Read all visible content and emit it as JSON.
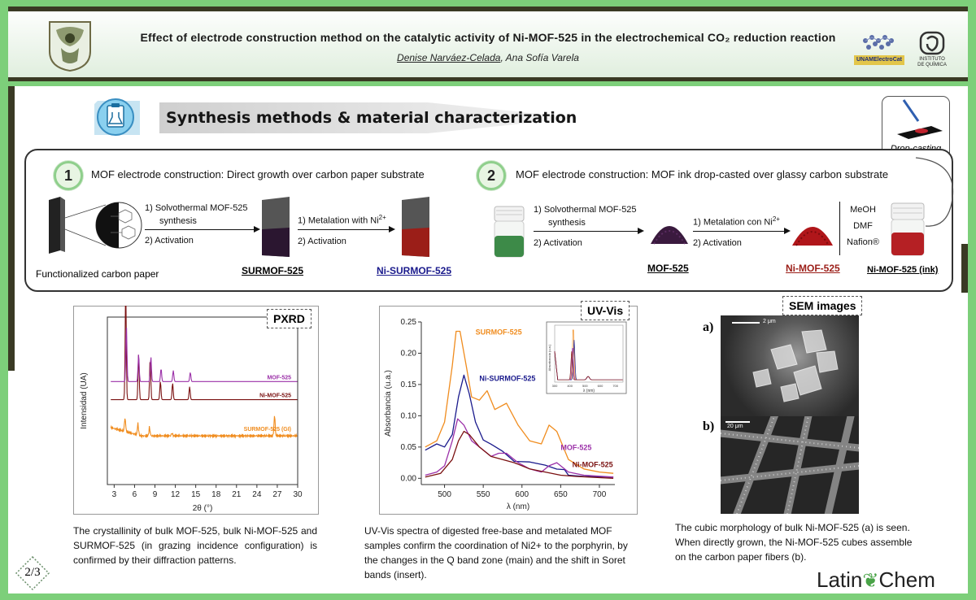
{
  "header": {
    "title": "Effect of electrode construction method on the catalytic activity of Ni-MOF-525 in the electrochemical CO₂ reduction reaction",
    "author_main": "Denise Narváez-Celada",
    "author_rest": ", Ana Sofía Varela",
    "logo_unam_text": "UNAMElectroCat",
    "logo_iq_text_1": "INSTITUTO",
    "logo_iq_text_2": "DE QUÍMICA"
  },
  "section": {
    "title": "Synthesis methods & material characterization"
  },
  "dropcast": {
    "label": "Drop-casting"
  },
  "method1": {
    "number": "1",
    "heading": "MOF electrode construction: Direct growth over carbon paper substrate",
    "step1_a": "1)  Solvothermal MOF-525",
    "step1_b": "synthesis",
    "step1_c": "2)  Activation",
    "step2_a": "1)  Metalation with Ni",
    "step2_sup": "2+",
    "step2_b": "2)  Activation",
    "label_paper": "Functionalized carbon paper",
    "label_sur": "SURMOF-525",
    "label_nisur": "Ni-SURMOF-525"
  },
  "method2": {
    "number": "2",
    "heading": "MOF electrode construction: MOF ink drop-casted over glassy carbon substrate",
    "step1_a": "1)  Solvothermal MOF-525",
    "step1_b": "synthesis",
    "step1_c": "2)  Activation",
    "step2_a": "1)  Metalation con Ni",
    "step2_sup": "2+",
    "step2_b": "2)  Activation",
    "ink_1": "MeOH",
    "ink_2": "DMF",
    "ink_3": "Nafion®",
    "label_mof": "MOF-525",
    "label_nimof": "Ni-MOF-525",
    "label_ink": "Ni-MOF-525 (ink)"
  },
  "pxrd": {
    "label": "PXRD",
    "caption": "The crystallinity of bulk MOF-525, bulk Ni-MOF-525 and SURMOF-525 (in grazing incidence configuration) is confirmed by their diffraction patterns."
  },
  "uvvis": {
    "label": "UV-Vis",
    "caption": "UV-Vis spectra of digested free-base and metalated MOF samples confirm the coordination of Ni2+ to the porphyrin, by the changes in the Q band zone (main) and the shift in Soret bands (insert)."
  },
  "sem": {
    "label": "SEM images",
    "a_label": "a)",
    "b_label": "b)",
    "scale_a": "2 μm",
    "scale_b": "20 μm",
    "caption": "The cubic morphology of  bulk Ni-MOF-525 (a) is seen. When directly grown, the Ni-MOF-525 cubes assemble on the carbon paper fibers (b)."
  },
  "footer": {
    "page": "2/3",
    "brand_a": "Latin",
    "brand_b": "Chem"
  },
  "colors": {
    "accent_green": "#7dcf7a",
    "dark_bar": "#3a3a24",
    "surmof": "#f08c1e",
    "nisurmof": "#1a1a8c",
    "mof": "#9b30a8",
    "nimof": "#7a1010"
  },
  "chart_data": [
    {
      "type": "line",
      "title": "",
      "xlabel": "2θ (°)",
      "ylabel": "Intensidad (UA)",
      "xlim": [
        2,
        30
      ],
      "x_ticks": [
        "3",
        "6",
        "9",
        "12",
        "15",
        "18",
        "21",
        "24",
        "27",
        "30"
      ],
      "series": [
        {
          "name": "SURMOF-525 (GI)",
          "color": "#f08c1e",
          "baseline": 0.72,
          "peaks": [
            [
              4.6,
              0.15
            ],
            [
              6.5,
              0.12
            ],
            [
              8.2,
              0.09
            ],
            [
              11.5,
              0.03
            ],
            [
              26.6,
              0.22
            ]
          ]
        },
        {
          "name": "Ni-MOF-525",
          "color": "#7a1010",
          "baseline": 0.48,
          "peaks": [
            [
              4.7,
              1.15
            ],
            [
              6.6,
              0.5
            ],
            [
              8.3,
              0.45
            ],
            [
              9.8,
              0.2
            ],
            [
              11.6,
              0.18
            ],
            [
              14.1,
              0.14
            ]
          ]
        },
        {
          "name": "MOF-525",
          "color": "#9b30a8",
          "baseline": 0.36,
          "peaks": [
            [
              4.8,
              0.6
            ],
            [
              6.6,
              0.3
            ],
            [
              8.4,
              0.27
            ],
            [
              9.9,
              0.14
            ],
            [
              11.7,
              0.12
            ],
            [
              14.2,
              0.1
            ]
          ]
        }
      ]
    },
    {
      "type": "line",
      "title": "",
      "xlabel": "λ (nm)",
      "ylabel": "Absorbancia (u.a.)",
      "xlim": [
        470,
        720
      ],
      "ylim": [
        -0.01,
        0.25
      ],
      "x_ticks": [
        "500",
        "550",
        "600",
        "650",
        "700"
      ],
      "y_ticks": [
        "0.00",
        "0.05",
        "0.10",
        "0.15",
        "0.20",
        "0.25"
      ],
      "series": [
        {
          "name": "SURMOF-525",
          "color": "#f08c1e",
          "x": [
            475,
            490,
            500,
            510,
            515,
            520,
            528,
            535,
            545,
            555,
            565,
            580,
            595,
            610,
            625,
            635,
            645,
            660,
            680,
            700,
            718
          ],
          "y": [
            0.05,
            0.06,
            0.09,
            0.18,
            0.235,
            0.235,
            0.18,
            0.13,
            0.125,
            0.14,
            0.11,
            0.12,
            0.085,
            0.06,
            0.055,
            0.085,
            0.075,
            0.03,
            0.015,
            0.01,
            0.008
          ]
        },
        {
          "name": "Ni-SURMOF-525",
          "color": "#1a1a8c",
          "x": [
            475,
            490,
            500,
            510,
            518,
            525,
            532,
            540,
            550,
            560,
            575,
            590,
            610,
            630,
            645,
            655,
            660,
            680,
            718
          ],
          "y": [
            0.045,
            0.055,
            0.05,
            0.07,
            0.13,
            0.165,
            0.135,
            0.09,
            0.065,
            0.055,
            0.045,
            0.03,
            0.025,
            0.02,
            0.015,
            0.01,
            0.005,
            0.003,
            0.002
          ]
        },
        {
          "name": "MOF-525",
          "color": "#9b30a8",
          "x": [
            475,
            490,
            500,
            510,
            517,
            525,
            535,
            545,
            560,
            570,
            580,
            595,
            610,
            625,
            635,
            645,
            660,
            680,
            718
          ],
          "y": [
            0.005,
            0.01,
            0.02,
            0.06,
            0.095,
            0.085,
            0.06,
            0.05,
            0.035,
            0.04,
            0.04,
            0.025,
            0.015,
            0.01,
            0.02,
            0.025,
            0.01,
            0.005,
            0.002
          ]
        },
        {
          "name": "Ni-MOF-525",
          "color": "#7a1010",
          "x": [
            475,
            495,
            510,
            518,
            525,
            532,
            545,
            560,
            575,
            590,
            610,
            630,
            650,
            670,
            700,
            718
          ],
          "y": [
            0.002,
            0.008,
            0.03,
            0.06,
            0.075,
            0.07,
            0.05,
            0.035,
            0.03,
            0.025,
            0.015,
            0.01,
            0.005,
            0.003,
            0.001,
            0.0
          ]
        }
      ],
      "inset": {
        "xlim": [
          300,
          750
        ],
        "x_ticks": [
          "300",
          "400",
          "500",
          "600",
          "700"
        ],
        "xlabel": "λ (nm)",
        "ylabel": "Absorbancia (u.a.)"
      }
    }
  ]
}
